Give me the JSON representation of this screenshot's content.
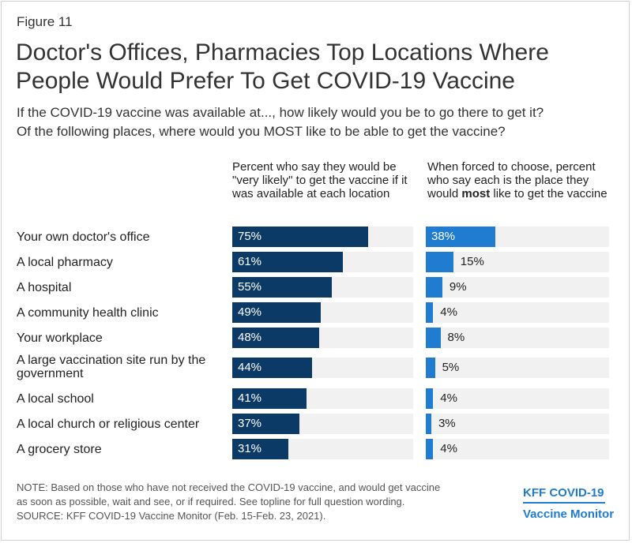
{
  "figure_label": "Figure 11",
  "chart_data": {
    "type": "bar",
    "title": "Doctor's Offices, Pharmacies Top Locations Where People Would Prefer To Get COVID-19 Vaccine",
    "subtitle_lines": [
      "If the COVID-19 vaccine was available at..., how likely would you be to go there to get it?",
      "Of the following places, where would you MOST like to be able to get the vaccine?"
    ],
    "categories": [
      "Your own doctor's office",
      "A local pharmacy",
      "A hospital",
      "A community health clinic",
      "Your workplace",
      "A large vaccination site run by the government",
      "A local school",
      "A local church or religious center",
      "A grocery store"
    ],
    "series": [
      {
        "name": "Percent who say they would be \"very likely\" to get the vaccine if it was available at each location",
        "values": [
          75,
          61,
          55,
          49,
          48,
          44,
          41,
          37,
          31
        ],
        "color": "#0b3a66"
      },
      {
        "name_parts": [
          "When forced to choose, percent who say each is the place they would ",
          "most",
          " like to get the vaccine"
        ],
        "values": [
          38,
          15,
          9,
          4,
          8,
          5,
          4,
          3,
          4
        ],
        "color": "#1f7cd0"
      }
    ],
    "value_suffix": "%",
    "xlim": [
      0,
      100
    ]
  },
  "notes": {
    "note_line1": "NOTE: Based on those who have not received the COVID-19 vaccine, and would get vaccine",
    "note_line2": "as soon as possible, wait and see, or if required. See topline for full question wording.",
    "source": "SOURCE: KFF COVID-19 Vaccine Monitor (Feb. 15-Feb. 23, 2021)."
  },
  "logo": {
    "line1": "KFF COVID-19",
    "line2": "Vaccine Monitor"
  }
}
